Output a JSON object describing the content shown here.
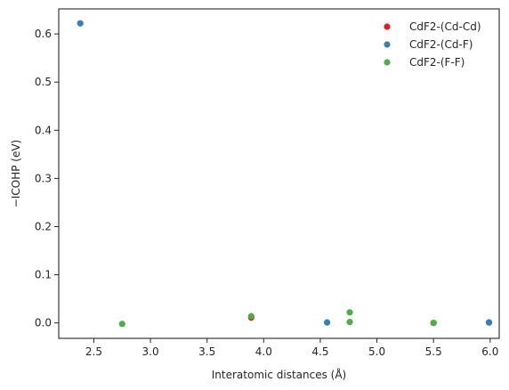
{
  "chart_data": {
    "type": "scatter",
    "xlabel": "Interatomic distances (Å)",
    "ylabel": "−ICOHP (eV)",
    "xlim": [
      2.19,
      6.08
    ],
    "ylim": [
      -0.032,
      0.652
    ],
    "xticks": [
      2.5,
      3.0,
      3.5,
      4.0,
      4.5,
      5.0,
      5.5,
      6.0
    ],
    "xtick_labels": [
      "2.5",
      "3.0",
      "3.5",
      "4.0",
      "4.5",
      "5.0",
      "5.5",
      "6.0"
    ],
    "yticks": [
      0.0,
      0.1,
      0.2,
      0.3,
      0.4,
      0.5,
      0.6
    ],
    "ytick_labels": [
      "0.0",
      "0.1",
      "0.2",
      "0.3",
      "0.4",
      "0.5",
      "0.6"
    ],
    "grid": false,
    "legend_position": "top-right",
    "series": [
      {
        "name": "CdF2-(Cd-Cd)",
        "color": "#e41a1c",
        "points": [
          {
            "x": 3.89,
            "y": 0.011
          },
          {
            "x": 5.5,
            "y": 0.0
          },
          {
            "x": 5.99,
            "y": 0.001
          }
        ]
      },
      {
        "name": "CdF2-(Cd-F)",
        "color": "#377eb8",
        "points": [
          {
            "x": 2.38,
            "y": 0.622
          },
          {
            "x": 4.56,
            "y": 0.001
          },
          {
            "x": 5.99,
            "y": 0.001
          }
        ]
      },
      {
        "name": "CdF2-(F-F)",
        "color": "#4daf4a",
        "points": [
          {
            "x": 2.75,
            "y": -0.002
          },
          {
            "x": 3.89,
            "y": 0.014
          },
          {
            "x": 4.76,
            "y": 0.022
          },
          {
            "x": 4.76,
            "y": 0.002
          },
          {
            "x": 5.5,
            "y": 0.0
          }
        ]
      }
    ]
  }
}
